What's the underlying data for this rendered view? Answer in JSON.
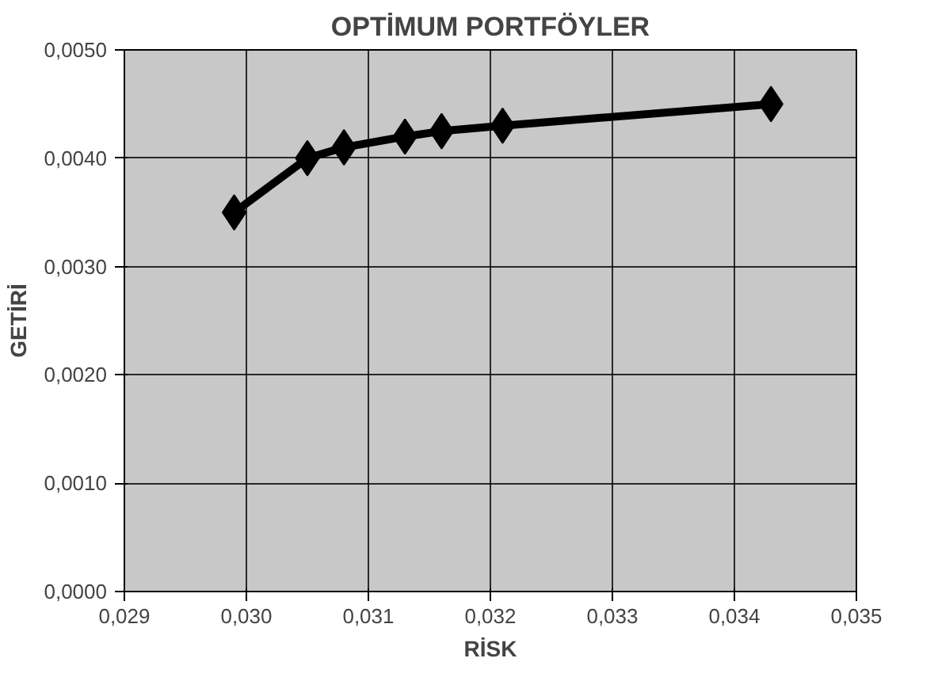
{
  "chart_data": {
    "type": "line",
    "title": "OPTİMUM PORTFÖYLER",
    "xlabel": "RİSK",
    "ylabel": "GETİRİ",
    "x": [
      0.0299,
      0.0305,
      0.0308,
      0.0313,
      0.0316,
      0.0321,
      0.0343
    ],
    "series": [
      {
        "color": "#000000",
        "values": [
          0.0035,
          0.004,
          0.0041,
          0.0042,
          0.00425,
          0.0043,
          0.0045
        ]
      }
    ],
    "xlim": [
      0.029,
      0.035
    ],
    "xticks": [
      {
        "value": 0.029,
        "label": "0,029"
      },
      {
        "value": 0.03,
        "label": "0,030"
      },
      {
        "value": 0.031,
        "label": "0,031"
      },
      {
        "value": 0.032,
        "label": "0,032"
      },
      {
        "value": 0.033,
        "label": "0,033"
      },
      {
        "value": 0.034,
        "label": "0,034"
      },
      {
        "value": 0.035,
        "label": "0,035"
      }
    ],
    "ylim": [
      0,
      0.005
    ],
    "yticks": [
      {
        "value": 0,
        "label": "0,0000"
      },
      {
        "value": 0.001,
        "label": "0,0010"
      },
      {
        "value": 0.002,
        "label": "0,0020"
      },
      {
        "value": 0.003,
        "label": "0,0030"
      },
      {
        "value": 0.004,
        "label": "0,0040"
      },
      {
        "value": 0.005,
        "label": "0,0050"
      }
    ],
    "grid": true,
    "marker": "diamond",
    "line_style": "solid"
  }
}
